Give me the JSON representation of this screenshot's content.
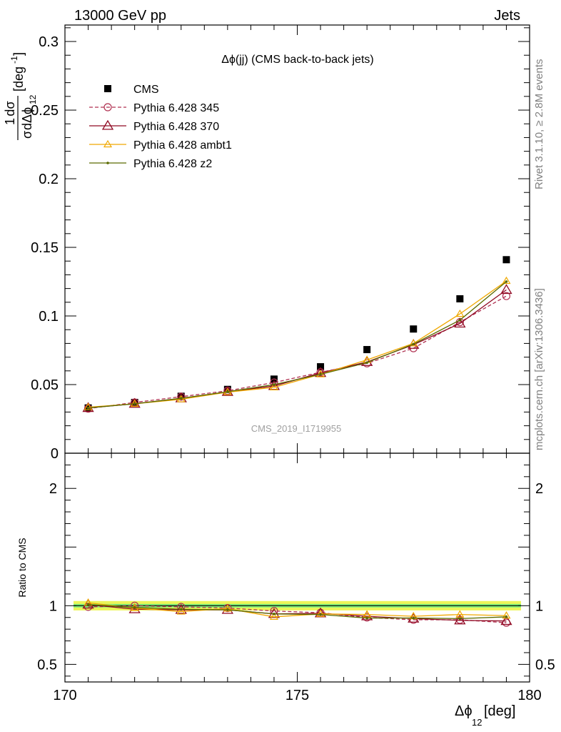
{
  "header": {
    "left": "13000 GeV pp",
    "right": "Jets"
  },
  "side": {
    "rivet": "Rivet 3.1.10, ≥ 2.8M events",
    "mcplots": "mcplots.cern.ch [arXiv:1306.3436]"
  },
  "chart_data": [
    {
      "type": "line",
      "title": "Δϕ(jj) (CMS back-to-back jets)",
      "watermark": "CMS_2019_I1719955",
      "ylabel": {
        "frac_num": "1",
        "frac_num2": "dσ",
        "frac_den": "σ",
        "frac_den2": "dΔϕ",
        "frac_den_sub": "12",
        "unit_open": "[deg",
        "unit_sup": "-1",
        "unit_close": "]"
      },
      "xlim": [
        170,
        180
      ],
      "ylim": [
        0,
        0.312
      ],
      "yticks": [
        {
          "v": 0,
          "label": "0"
        },
        {
          "v": 0.05,
          "label": "0.05"
        },
        {
          "v": 0.1,
          "label": "0.1"
        },
        {
          "v": 0.15,
          "label": "0.15"
        },
        {
          "v": 0.2,
          "label": "0.2"
        },
        {
          "v": 0.25,
          "label": "0.25"
        },
        {
          "v": 0.3,
          "label": "0.3"
        }
      ],
      "legend_position": "top-left",
      "x": [
        170.5,
        171.5,
        172.5,
        173.5,
        174.5,
        175.5,
        176.5,
        177.5,
        178.5,
        179.5
      ],
      "series": [
        {
          "name": "CMS",
          "color": "#000000",
          "marker": "square",
          "values": [
            0.033,
            0.037,
            0.0415,
            0.0465,
            0.054,
            0.063,
            0.0755,
            0.0905,
            0.1125,
            0.141
          ]
        },
        {
          "name": "Pythia 6.428 345",
          "color": "#b03050",
          "marker": "circle",
          "dash": true,
          "values": [
            0.0325,
            0.037,
            0.0412,
            0.0455,
            0.0515,
            0.059,
            0.0655,
            0.0765,
            0.0955,
            0.1145
          ]
        },
        {
          "name": "Pythia 6.428 370",
          "color": "#900a23",
          "marker": "triangle",
          "values": [
            0.033,
            0.036,
            0.04,
            0.0447,
            0.049,
            0.0585,
            0.0665,
            0.079,
            0.0945,
            0.119
          ]
        },
        {
          "name": "Pythia 6.428 ambt1",
          "color": "#f0a800",
          "marker": "triangle-small",
          "values": [
            0.0335,
            0.036,
            0.0393,
            0.0445,
            0.048,
            0.0575,
            0.068,
            0.08,
            0.1015,
            0.1255
          ]
        },
        {
          "name": "Pythia 6.428 z2",
          "color": "#5a6a00",
          "marker": "dot",
          "values": [
            0.033,
            0.036,
            0.04,
            0.0448,
            0.05,
            0.0575,
            0.066,
            0.0795,
            0.097,
            0.125
          ]
        }
      ]
    },
    {
      "type": "line",
      "ylabel": "Ratio to CMS",
      "xlabel": {
        "main": "Δϕ",
        "sub": "12",
        "unit": " [deg]"
      },
      "xlim": [
        170,
        180
      ],
      "ylim": [
        0.35,
        2.3
      ],
      "xticks": [
        {
          "v": 170,
          "label": "170"
        },
        {
          "v": 175,
          "label": "175"
        },
        {
          "v": 180,
          "label": "180"
        }
      ],
      "yticks": [
        {
          "v": 0.5,
          "label": "0.5"
        },
        {
          "v": 1,
          "label": "1"
        },
        {
          "v": 2,
          "label": "2"
        }
      ],
      "x": [
        170.5,
        171.5,
        172.5,
        173.5,
        174.5,
        175.5,
        176.5,
        177.5,
        178.5,
        179.5
      ],
      "series": [
        {
          "name": "Pythia 6.428 345",
          "color": "#b03050",
          "marker": "circle",
          "dash": true,
          "values": [
            0.99,
            1.0,
            0.99,
            0.98,
            0.955,
            0.94,
            0.9,
            0.88,
            0.88,
            0.855
          ]
        },
        {
          "name": "Pythia 6.428 370",
          "color": "#900a23",
          "marker": "triangle",
          "values": [
            1.01,
            0.97,
            0.965,
            0.965,
            0.93,
            0.935,
            0.91,
            0.89,
            0.875,
            0.87
          ]
        },
        {
          "name": "Pythia 6.428 ambt1",
          "color": "#f0a800",
          "marker": "triangle-small",
          "values": [
            1.025,
            0.98,
            0.95,
            0.975,
            0.905,
            0.93,
            0.925,
            0.91,
            0.925,
            0.915
          ]
        },
        {
          "name": "Pythia 6.428 z2",
          "color": "#5a6a00",
          "marker": "dot",
          "values": [
            1.01,
            0.985,
            0.97,
            0.965,
            0.93,
            0.925,
            0.895,
            0.895,
            0.89,
            0.905
          ]
        }
      ]
    }
  ]
}
